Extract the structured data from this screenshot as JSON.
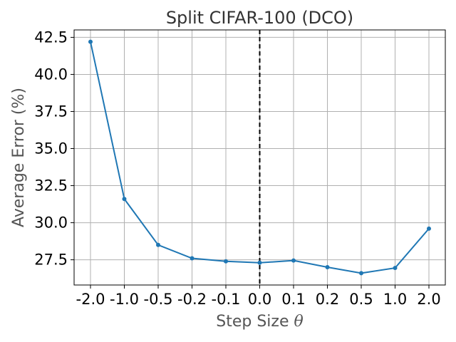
{
  "chart_data": {
    "type": "line",
    "title": "Split CIFAR-100 (DCO)",
    "xlabel_text": "Step Size ",
    "xlabel_symbol": "θ",
    "ylabel": "Average Error (%)",
    "categories": [
      "-2.0",
      "-1.0",
      "-0.5",
      "-0.2",
      "-0.1",
      "0.0",
      "0.1",
      "0.2",
      "0.5",
      "1.0",
      "2.0"
    ],
    "series": [
      {
        "values": [
          42.2,
          31.6,
          28.5,
          27.6,
          27.4,
          27.3,
          27.45,
          27.0,
          26.6,
          26.95,
          29.6
        ],
        "color": "#1f77b4"
      }
    ],
    "ylim": [
      25.8,
      43.0
    ],
    "yticks": [
      27.5,
      30.0,
      32.5,
      35.0,
      37.5,
      40.0,
      42.5
    ],
    "ytick_labels": [
      "27.5",
      "30.0",
      "32.5",
      "35.0",
      "37.5",
      "40.0",
      "42.5"
    ],
    "reference_line": {
      "category": "0.0",
      "style": "dashed",
      "color": "#000000"
    },
    "grid": true,
    "legend": "none"
  }
}
